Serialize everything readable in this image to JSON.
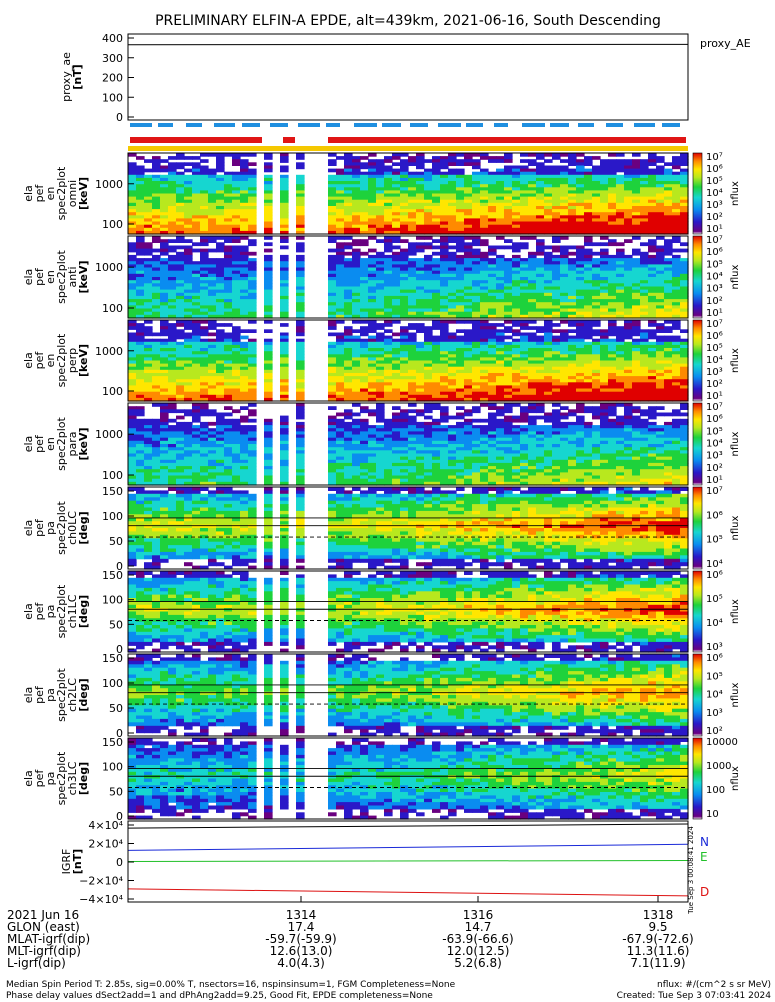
{
  "title": "PRELIMINARY ELFIN-A EPDE, alt=439km, 2021-06-16, South Descending",
  "chart_data": [
    {
      "type": "line",
      "name": "proxy_ae",
      "ylabel_lines": [
        "proxy_ae",
        "[nT]"
      ],
      "legend": "proxy_AE",
      "yticks": [
        "400",
        "300",
        "200",
        "100",
        "0"
      ],
      "ylim": [
        0,
        400
      ],
      "series": [
        {
          "name": "proxy_AE",
          "values": [
            350,
            352
          ]
        }
      ]
    },
    {
      "type": "heatmap",
      "name": "ela_pef_en_spec2plot_omni",
      "ylabel_lines": [
        "ela",
        "pef",
        "en",
        "spec2plot",
        "omni",
        "[keV]"
      ],
      "yticks": [
        "1000",
        "100"
      ],
      "scale": "log",
      "colorbar_label": "nflux",
      "colorbar_ticks": [
        "10⁷",
        "10⁶",
        "10⁵",
        "10⁴",
        "10³",
        "10²",
        "10¹"
      ],
      "colorbar_range": [
        1,
        10000000
      ]
    },
    {
      "type": "heatmap",
      "name": "ela_pef_en_spec2plot_anti",
      "ylabel_lines": [
        "ela",
        "pef",
        "en",
        "spec2plot",
        "anti",
        "[keV]"
      ],
      "yticks": [
        "1000",
        "100"
      ],
      "scale": "log",
      "colorbar_label": "nflux",
      "colorbar_ticks": [
        "10⁷",
        "10⁶",
        "10⁵",
        "10⁴",
        "10³",
        "10²",
        "10¹"
      ],
      "colorbar_range": [
        1,
        10000000
      ]
    },
    {
      "type": "heatmap",
      "name": "ela_pef_en_spec2plot_perp",
      "ylabel_lines": [
        "ela",
        "pef",
        "en",
        "spec2plot",
        "perp",
        "[keV]"
      ],
      "yticks": [
        "1000",
        "100"
      ],
      "scale": "log",
      "colorbar_label": "nflux",
      "colorbar_ticks": [
        "10⁷",
        "10⁶",
        "10⁵",
        "10⁴",
        "10³",
        "10²",
        "10¹"
      ],
      "colorbar_range": [
        1,
        10000000
      ]
    },
    {
      "type": "heatmap",
      "name": "ela_pef_en_spec2plot_para",
      "ylabel_lines": [
        "ela",
        "pef",
        "en",
        "spec2plot",
        "para",
        "[keV]"
      ],
      "yticks": [
        "1000",
        "100"
      ],
      "scale": "log",
      "colorbar_label": "nflux",
      "colorbar_ticks": [
        "10⁷",
        "10⁶",
        "10⁵",
        "10⁴",
        "10³",
        "10²",
        "10¹"
      ],
      "colorbar_range": [
        1,
        10000000
      ]
    },
    {
      "type": "heatmap",
      "name": "ela_pef_pa_spec2plot_ch0LC",
      "ylabel_lines": [
        "ela",
        "pef",
        "pa",
        "spec2plot",
        "ch0LC",
        "[deg]"
      ],
      "yticks": [
        "150",
        "100",
        "50",
        "0"
      ],
      "ylim": [
        0,
        180
      ],
      "colorbar_label": "nflux",
      "colorbar_ticks": [
        "10⁷",
        "10⁶",
        "10⁵",
        "10⁴"
      ],
      "colorbar_range": [
        3000,
        10000000
      ]
    },
    {
      "type": "heatmap",
      "name": "ela_pef_pa_spec2plot_ch1LC",
      "ylabel_lines": [
        "ela",
        "pef",
        "pa",
        "spec2plot",
        "ch1LC",
        "[deg]"
      ],
      "yticks": [
        "150",
        "100",
        "50",
        "0"
      ],
      "ylim": [
        0,
        180
      ],
      "colorbar_label": "nflux",
      "colorbar_ticks": [
        "10⁶",
        "10⁵",
        "10⁴",
        "10³"
      ],
      "colorbar_range": [
        1000,
        3000000
      ]
    },
    {
      "type": "heatmap",
      "name": "ela_pef_pa_spec2plot_ch2LC",
      "ylabel_lines": [
        "ela",
        "pef",
        "pa",
        "spec2plot",
        "ch2LC",
        "[deg]"
      ],
      "yticks": [
        "150",
        "100",
        "50",
        "0"
      ],
      "ylim": [
        0,
        180
      ],
      "colorbar_label": "nflux",
      "colorbar_ticks": [
        "10⁶",
        "10⁵",
        "10⁴",
        "10³",
        "10²"
      ],
      "colorbar_range": [
        100,
        1000000
      ]
    },
    {
      "type": "heatmap",
      "name": "ela_pef_pa_spec2plot_ch3LC",
      "ylabel_lines": [
        "ela",
        "pef",
        "pa",
        "spec2plot",
        "ch3LC",
        "[deg]"
      ],
      "yticks": [
        "150",
        "100",
        "50",
        "0"
      ],
      "ylim": [
        0,
        180
      ],
      "colorbar_label": "nflux",
      "colorbar_ticks": [
        "10000",
        "1000",
        "100",
        "10"
      ],
      "colorbar_range": [
        10,
        20000
      ]
    },
    {
      "type": "line",
      "name": "igrf",
      "ylabel_lines": [
        "IGRF",
        "[nT]"
      ],
      "yticks": [
        "4×10⁴",
        "2×10⁴",
        "0",
        "−2×10⁴",
        "−4×10⁴"
      ],
      "ylim": [
        -40000,
        40000
      ],
      "series": [
        {
          "name": "black",
          "values": [
            33000,
            37000
          ],
          "color": "#000000"
        },
        {
          "name": "N",
          "values": [
            11000,
            17000
          ],
          "color": "#1a2ad8"
        },
        {
          "name": "E",
          "values": [
            0,
            1000
          ],
          "color": "#22c02a"
        },
        {
          "name": "D",
          "values": [
            -27000,
            -34000
          ],
          "color": "#dd1111"
        }
      ],
      "legend": [
        "N",
        "E",
        "D"
      ]
    }
  ],
  "side_note": "Tue Sep  3 00:08:41 2024",
  "xaxis": {
    "ticks": [
      "1314",
      "1316",
      "1318"
    ],
    "rows": [
      {
        "label": "2021 Jun 16",
        "values": [
          "",
          "",
          ""
        ]
      },
      {
        "label": "GLON (east)",
        "values": [
          "17.4",
          "14.7",
          "9.5"
        ]
      },
      {
        "label": "MLAT-igrf(dip)",
        "values": [
          "-59.7(-59.9)",
          "-63.9(-66.6)",
          "-67.9(-72.6)"
        ]
      },
      {
        "label": "MLT-igrf(dip)",
        "values": [
          "12.6(13.0)",
          "12.0(12.5)",
          "11.3(11.6)"
        ]
      },
      {
        "label": "L-igrf(dip)",
        "values": [
          "4.0(4.3)",
          "5.2(6.8)",
          "7.1(11.9)"
        ]
      }
    ]
  },
  "footer": {
    "line1_left": "Median Spin Period T: 2.85s, sig=0.00% T, nsectors=16, nspinsinsum=1, FGM Completeness=None",
    "line1_right": "nflux: #/(cm^2 s sr MeV)",
    "line2_left": "Phase delay values dSect2add=1 and dPhAng2add=9.25, Good Fit, EPDE completeness=None",
    "line2_right": "Created: Tue Sep  3 07:03:41 2024"
  },
  "colors": {
    "status_blue": "#1f8fe0",
    "status_red": "#e01515",
    "status_yellow": "#f5c800"
  }
}
